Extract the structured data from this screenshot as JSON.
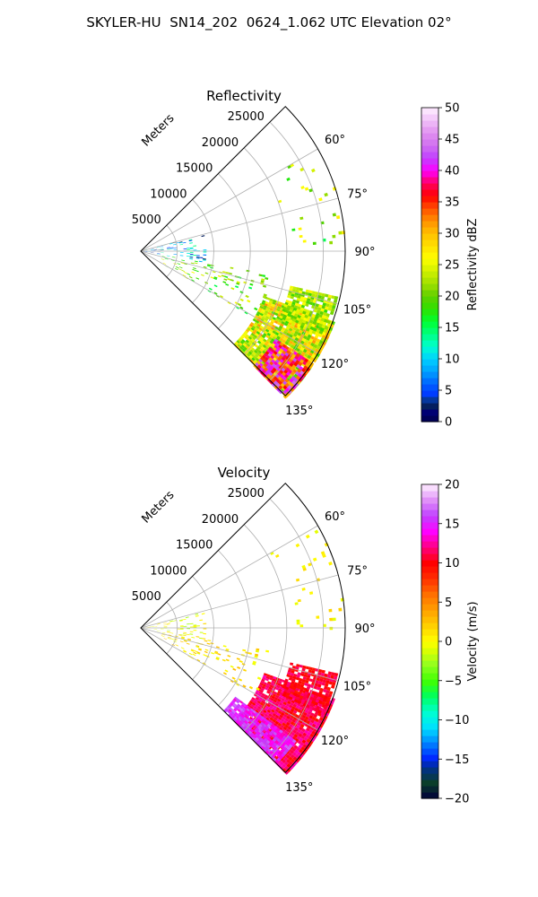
{
  "figure": {
    "suptitle": "SKYLER-HU  SN14_202  0624_1.062 UTC Elevation 02°"
  },
  "chart_data": [
    {
      "type": "heatmap",
      "projection": "polar-sector",
      "title": "Reflectivity",
      "radial_axis_label": "Meters",
      "radial_ticks": [
        5000,
        10000,
        15000,
        20000,
        25000
      ],
      "radial_tick_labels": [
        "5000",
        "10000",
        "15000",
        "20000",
        "25000"
      ],
      "rmax": 28000,
      "azimuth_range_deg": [
        45,
        135
      ],
      "azimuth_ticks_deg": [
        60,
        75,
        90,
        105,
        120,
        135
      ],
      "azimuth_tick_labels": [
        "60°",
        "75°",
        "90°",
        "105°",
        "120°",
        "135°"
      ],
      "grid": true,
      "colorbar": {
        "label": "Reflectivity dBZ",
        "vmin": 0,
        "vmax": 50,
        "ticks": [
          0,
          5,
          10,
          15,
          20,
          25,
          30,
          35,
          40,
          45,
          50
        ],
        "tick_labels": [
          "0",
          "5",
          "10",
          "15",
          "20",
          "25",
          "30",
          "35",
          "40",
          "45",
          "50"
        ],
        "position": "right"
      },
      "echo_regions": [
        {
          "az": [
            110,
            135
          ],
          "r": [
            18000,
            28000
          ],
          "value_range": [
            18,
            32
          ],
          "cover": 0.95
        },
        {
          "az": [
            123,
            135
          ],
          "r": [
            22000,
            28000
          ],
          "value_range": [
            30,
            44
          ],
          "cover": 0.9
        },
        {
          "az": [
            103,
            115
          ],
          "r": [
            21000,
            27500
          ],
          "value_range": [
            18,
            27
          ],
          "cover": 0.8
        },
        {
          "az": [
            100,
            120
          ],
          "r": [
            3000,
            18000
          ],
          "value_range": [
            15,
            26
          ],
          "cover": 0.12
        },
        {
          "az": [
            60,
            90
          ],
          "r": [
            20000,
            28000
          ],
          "value_range": [
            15,
            28
          ],
          "cover": 0.05
        },
        {
          "az": [
            75,
            100
          ],
          "r": [
            0,
            9000
          ],
          "value_range": [
            2,
            15
          ],
          "cover": 0.15
        }
      ]
    },
    {
      "type": "heatmap",
      "projection": "polar-sector",
      "title": "Velocity",
      "radial_axis_label": "Meters",
      "radial_ticks": [
        5000,
        10000,
        15000,
        20000,
        25000
      ],
      "radial_tick_labels": [
        "5000",
        "10000",
        "15000",
        "20000",
        "25000"
      ],
      "rmax": 28000,
      "azimuth_range_deg": [
        45,
        135
      ],
      "azimuth_ticks_deg": [
        60,
        75,
        90,
        105,
        120,
        135
      ],
      "azimuth_tick_labels": [
        "60°",
        "75°",
        "90°",
        "105°",
        "120°",
        "135°"
      ],
      "grid": true,
      "colorbar": {
        "label": "Velocity (m/s)",
        "vmin": -20,
        "vmax": 20,
        "ticks": [
          -20,
          -15,
          -10,
          -5,
          0,
          5,
          10,
          15,
          20
        ],
        "tick_labels": [
          "−20",
          "−15",
          "−10",
          "−5",
          "0",
          "5",
          "10",
          "15",
          "20"
        ],
        "position": "right"
      },
      "echo_regions": [
        {
          "az": [
            110,
            135
          ],
          "r": [
            18000,
            28000
          ],
          "value_range": [
            9,
            13
          ],
          "cover": 0.95
        },
        {
          "az": [
            126,
            135
          ],
          "r": [
            16000,
            26000
          ],
          "value_range": [
            13,
            17
          ],
          "cover": 0.9
        },
        {
          "az": [
            103,
            115
          ],
          "r": [
            21000,
            27500
          ],
          "value_range": [
            9,
            12
          ],
          "cover": 0.8
        },
        {
          "az": [
            100,
            120
          ],
          "r": [
            3000,
            18000
          ],
          "value_range": [
            -1,
            3
          ],
          "cover": 0.12
        },
        {
          "az": [
            60,
            90
          ],
          "r": [
            20000,
            28000
          ],
          "value_range": [
            -1,
            2
          ],
          "cover": 0.05
        },
        {
          "az": [
            75,
            100
          ],
          "r": [
            0,
            9000
          ],
          "value_range": [
            -3,
            2
          ],
          "cover": 0.15
        }
      ]
    }
  ]
}
